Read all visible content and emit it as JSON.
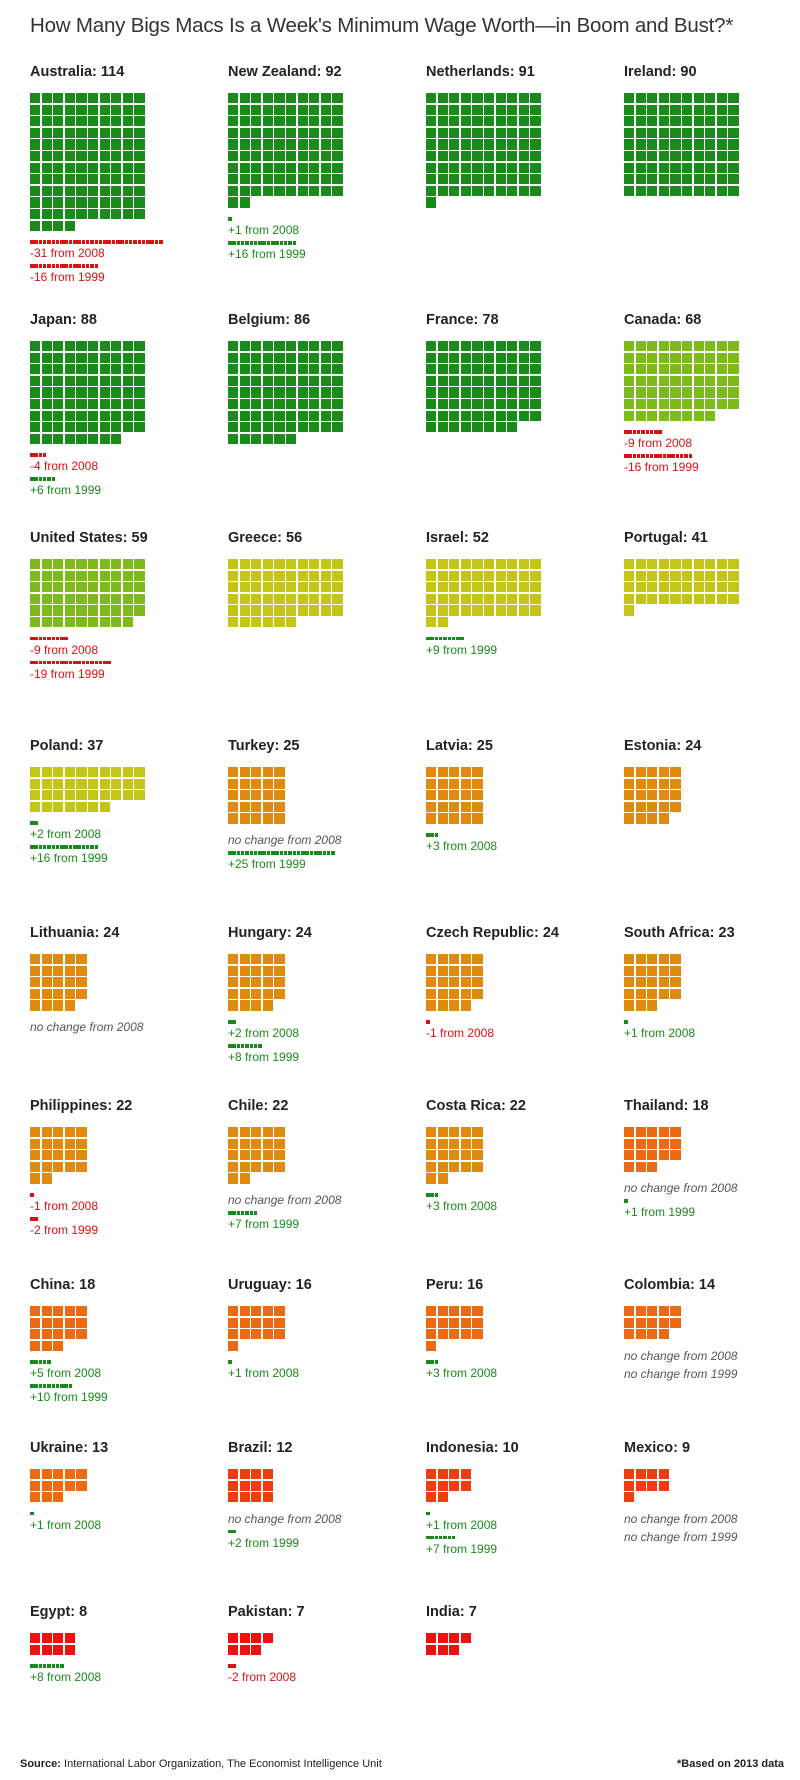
{
  "title": "How Many Bigs Macs Is a Week's Minimum Wage Worth—in Boom and Bust?*",
  "footer": {
    "source_label": "Source:",
    "source_text": " International Labor Organization, The Economist Intelligence Unit",
    "note": "*Based on 2013 data"
  },
  "colors": {
    "increase": "#1a8a1a",
    "decrease": "#dd1111",
    "scale": [
      {
        "min": 78,
        "color": "#1a8a1a"
      },
      {
        "min": 59,
        "color": "#7dba1c"
      },
      {
        "min": 37,
        "color": "#c5c518"
      },
      {
        "min": 22,
        "color": "#e08a10"
      },
      {
        "min": 13,
        "color": "#ec6a12"
      },
      {
        "min": 9,
        "color": "#f03c10"
      },
      {
        "min": 0,
        "color": "#f01010"
      }
    ]
  },
  "chart_data": {
    "type": "waffle",
    "unit": "Big Macs per week's minimum wage",
    "countries": [
      {
        "label": "Australia: 114",
        "name": "Australia",
        "value": 114,
        "changes": [
          {
            "text": "-31 from 2008",
            "delta": -31
          },
          {
            "text": "-16 from 1999",
            "delta": -16
          }
        ]
      },
      {
        "label": "New Zealand: 92",
        "name": "New Zealand",
        "value": 92,
        "changes": [
          {
            "text": "+1 from 2008",
            "delta": 1
          },
          {
            "text": "+16 from 1999",
            "delta": 16
          }
        ]
      },
      {
        "label": "Netherlands: 91",
        "name": "Netherlands",
        "value": 91,
        "changes": []
      },
      {
        "label": "Ireland: 90",
        "name": "Ireland",
        "value": 90,
        "changes": []
      },
      {
        "label": "Japan: 88",
        "name": "Japan",
        "value": 88,
        "changes": [
          {
            "text": "-4 from 2008",
            "delta": -4
          },
          {
            "text": "+6 from 1999",
            "delta": 6
          }
        ]
      },
      {
        "label": "Belgium: 86",
        "name": "Belgium",
        "value": 86,
        "changes": []
      },
      {
        "label": "France: 78",
        "name": "France",
        "value": 78,
        "changes": []
      },
      {
        "label": "Canada: 68",
        "name": "Canada",
        "value": 68,
        "changes": [
          {
            "text": "-9 from 2008",
            "delta": -9
          },
          {
            "text": "-16 from 1999",
            "delta": -16
          }
        ]
      },
      {
        "label": "United States: 59",
        "name": "United States",
        "value": 59,
        "changes": [
          {
            "text": "-9 from 2008",
            "delta": -9
          },
          {
            "text": "-19 from 1999",
            "delta": -19
          }
        ]
      },
      {
        "label": "Greece: 56",
        "name": "Greece",
        "value": 56,
        "changes": []
      },
      {
        "label": "Israel: 52",
        "name": "Israel",
        "value": 52,
        "changes": [
          {
            "text": "+9 from 1999",
            "delta": 9
          }
        ]
      },
      {
        "label": "Portugal: 41",
        "name": "Portugal",
        "value": 41,
        "changes": []
      },
      {
        "label": "Poland: 37",
        "name": "Poland",
        "value": 37,
        "changes": [
          {
            "text": "+2 from 2008",
            "delta": 2
          },
          {
            "text": "+16 from 1999",
            "delta": 16
          }
        ]
      },
      {
        "label": "Turkey: 25",
        "name": "Turkey",
        "value": 25,
        "changes": [
          {
            "text": "no change from 2008",
            "delta": 0
          },
          {
            "text": "+25 from 1999",
            "delta": 25
          }
        ]
      },
      {
        "label": "Latvia: 25",
        "name": "Latvia",
        "value": 25,
        "changes": [
          {
            "text": "+3 from 2008",
            "delta": 3
          }
        ]
      },
      {
        "label": "Estonia: 24",
        "name": "Estonia",
        "value": 24,
        "changes": []
      },
      {
        "label": "Lithuania: 24",
        "name": "Lithuania",
        "value": 24,
        "changes": [
          {
            "text": "no change from 2008",
            "delta": 0
          }
        ]
      },
      {
        "label": "Hungary: 24",
        "name": "Hungary",
        "value": 24,
        "changes": [
          {
            "text": "+2 from 2008",
            "delta": 2
          },
          {
            "text": "+8 from 1999",
            "delta": 8
          }
        ]
      },
      {
        "label": "Czech Republic: 24",
        "name": "Czech Republic",
        "value": 24,
        "changes": [
          {
            "text": "-1 from 2008",
            "delta": -1
          }
        ]
      },
      {
        "label": "South Africa: 23",
        "name": "South Africa",
        "value": 23,
        "changes": [
          {
            "text": "+1 from 2008",
            "delta": 1
          }
        ]
      },
      {
        "label": "Philippines: 22",
        "name": "Philippines",
        "value": 22,
        "changes": [
          {
            "text": "-1 from 2008",
            "delta": -1
          },
          {
            "text": "-2 from 1999",
            "delta": -2
          }
        ]
      },
      {
        "label": "Chile: 22",
        "name": "Chile",
        "value": 22,
        "changes": [
          {
            "text": "no change from 2008",
            "delta": 0
          },
          {
            "text": "+7 from 1999",
            "delta": 7
          }
        ]
      },
      {
        "label": "Costa Rica: 22",
        "name": "Costa Rica",
        "value": 22,
        "changes": [
          {
            "text": "+3 from 2008",
            "delta": 3
          }
        ]
      },
      {
        "label": "Thailand: 18",
        "name": "Thailand",
        "value": 18,
        "changes": [
          {
            "text": "no change from 2008",
            "delta": 0
          },
          {
            "text": "+1 from 1999",
            "delta": 1
          }
        ]
      },
      {
        "label": "China: 18",
        "name": "China",
        "value": 18,
        "changes": [
          {
            "text": "+5 from 2008",
            "delta": 5
          },
          {
            "text": "+10 from 1999",
            "delta": 10
          }
        ]
      },
      {
        "label": "Uruguay: 16",
        "name": "Uruguay",
        "value": 16,
        "changes": [
          {
            "text": "+1 from 2008",
            "delta": 1
          }
        ]
      },
      {
        "label": "Peru: 16",
        "name": "Peru",
        "value": 16,
        "changes": [
          {
            "text": "+3 from 2008",
            "delta": 3
          }
        ]
      },
      {
        "label": "Colombia: 14",
        "name": "Colombia",
        "value": 14,
        "changes": [
          {
            "text": "no change from 2008",
            "delta": 0
          },
          {
            "text": "no change from 1999",
            "delta": 0
          }
        ]
      },
      {
        "label": "Ukraine: 13",
        "name": "Ukraine",
        "value": 13,
        "changes": [
          {
            "text": "+1 from 2008",
            "delta": 1
          }
        ]
      },
      {
        "label": "Brazil: 12",
        "name": "Brazil",
        "value": 12,
        "changes": [
          {
            "text": "no change from 2008",
            "delta": 0
          },
          {
            "text": "+2 from 1999",
            "delta": 2
          }
        ]
      },
      {
        "label": "Indonesia: 10",
        "name": "Indonesia",
        "value": 10,
        "changes": [
          {
            "text": "+1 from 2008",
            "delta": 1
          },
          {
            "text": "+7 from 1999",
            "delta": 7
          }
        ]
      },
      {
        "label": "Mexico: 9",
        "name": "Mexico",
        "value": 9,
        "changes": [
          {
            "text": "no change from 2008",
            "delta": 0
          },
          {
            "text": "no change from 1999",
            "delta": 0
          }
        ]
      },
      {
        "label": "Egypt: 8",
        "name": "Egypt",
        "value": 8,
        "changes": [
          {
            "text": "+8 from 2008",
            "delta": 8
          }
        ]
      },
      {
        "label": "Pakistan: 7",
        "name": "Pakistan",
        "value": 7,
        "changes": [
          {
            "text": "-2 from 2008",
            "delta": -2
          }
        ]
      },
      {
        "label": "India: 7",
        "name": "India",
        "value": 7,
        "changes": []
      }
    ]
  }
}
